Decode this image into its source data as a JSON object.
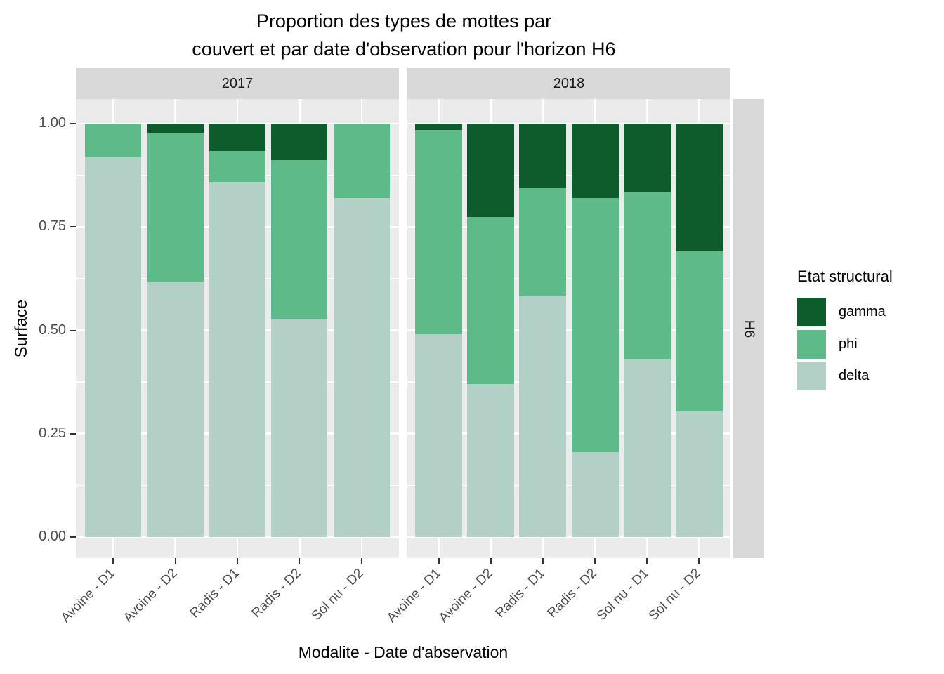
{
  "chart_data": {
    "type": "bar",
    "stacked": true,
    "title_lines": [
      "Proportion des types de mottes par",
      "couvert et par date d'observation pour l'horizon H6"
    ],
    "xlabel": "Modalite - Date d'abservation",
    "ylabel": "Surface",
    "ylim": [
      0,
      1
    ],
    "y_major_ticks": [
      0,
      0.25,
      0.5,
      0.75,
      1
    ],
    "y_tick_labels": [
      "0.00",
      "0.25",
      "0.50",
      "0.75",
      "1.00"
    ],
    "y_minor_ticks": [
      0.125,
      0.375,
      0.625,
      0.875
    ],
    "grid": "white major+minor horizontal, white major vertical, on grey panel",
    "facet_row_label": "H6",
    "legend": {
      "title": "Etat structural",
      "position": "right",
      "entries": [
        {
          "label": "gamma",
          "color": "#0e5b2b"
        },
        {
          "label": "phi",
          "color": "#5fba89"
        },
        {
          "label": "delta",
          "color": "#b2d0c5"
        }
      ]
    },
    "stack_order_bottom_to_top": [
      "delta",
      "phi",
      "gamma"
    ],
    "facets": [
      {
        "label": "2017",
        "categories": [
          "Avoine - D1",
          "Avoine - D2",
          "Radis - D1",
          "Radis - D2",
          "Sol nu - D2"
        ],
        "series": [
          {
            "name": "delta",
            "values": [
              0.918,
              0.618,
              0.859,
              0.528,
              0.82
            ]
          },
          {
            "name": "phi",
            "values": [
              0.082,
              0.36,
              0.075,
              0.384,
              0.18
            ]
          },
          {
            "name": "gamma",
            "values": [
              0.0,
              0.022,
              0.066,
              0.088,
              0.0
            ]
          }
        ]
      },
      {
        "label": "2018",
        "categories": [
          "Avoine - D1",
          "Avoine - D2",
          "Radis - D1",
          "Radis - D2",
          "Sol nu - D1",
          "Sol nu - D2"
        ],
        "series": [
          {
            "name": "delta",
            "values": [
              0.49,
              0.37,
              0.582,
              0.205,
              0.43,
              0.306
            ]
          },
          {
            "name": "phi",
            "values": [
              0.495,
              0.404,
              0.262,
              0.615,
              0.405,
              0.385
            ]
          },
          {
            "name": "gamma",
            "values": [
              0.015,
              0.226,
              0.156,
              0.18,
              0.165,
              0.309
            ]
          }
        ]
      }
    ],
    "colors": {
      "gamma": "#0e5b2b",
      "phi": "#5fba89",
      "delta": "#b2d0c5"
    },
    "panel_background": "#ebebeb",
    "strip_background": "#d9d9d9",
    "gridline_color": "#ffffff",
    "axis_text_color": "#4d4d4d",
    "strip_text_color": "#1a1a1a",
    "tick_mark_color": "#333333"
  }
}
